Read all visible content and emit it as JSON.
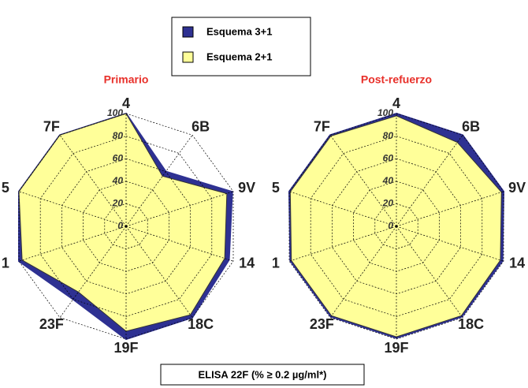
{
  "caption": "ELISA 22F (% ≥ 0.2 µg/ml*)",
  "chart_data": [
    {
      "type": "radar",
      "title": "Primario",
      "categories": [
        "4",
        "6B",
        "9V",
        "14",
        "18C",
        "19F",
        "23F",
        "1",
        "5",
        "7F"
      ],
      "rlim": [
        0,
        100
      ],
      "rticks": [
        0,
        20,
        40,
        60,
        80,
        100
      ],
      "grid": true,
      "series": [
        {
          "name": "Esquema 3+1",
          "color": "#2e3192",
          "values": [
            100,
            60,
            99,
            96,
            100,
            100,
            80,
            100,
            100,
            100
          ]
        },
        {
          "name": "Esquema 2+1",
          "color": "#ffff99",
          "values": [
            100,
            55,
            94,
            92,
            97,
            93,
            72,
            97,
            100,
            100
          ]
        }
      ]
    },
    {
      "type": "radar",
      "title": "Post-refuerzo",
      "categories": [
        "4",
        "6B",
        "9V",
        "14",
        "18C",
        "19F",
        "23F",
        "1",
        "5",
        "7F"
      ],
      "rlim": [
        0,
        100
      ],
      "rticks": [
        0,
        20,
        40,
        60,
        80,
        100
      ],
      "grid": true,
      "series": [
        {
          "name": "Esquema 3+1",
          "color": "#2e3192",
          "values": [
            100,
            100,
            100,
            99,
            99,
            99,
            99,
            99,
            100,
            100
          ]
        },
        {
          "name": "Esquema 2+1",
          "color": "#ffff99",
          "values": [
            98,
            92,
            98,
            97,
            98,
            98,
            98,
            98,
            99,
            99
          ]
        }
      ]
    }
  ]
}
